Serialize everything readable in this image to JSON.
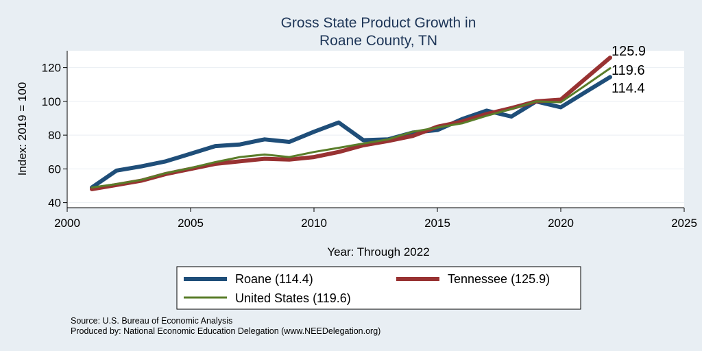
{
  "chart_data": {
    "type": "line",
    "title_line1": "Gross State Product Growth in",
    "title_line2": "Roane County, TN",
    "xlabel": "Year: Through 2022",
    "ylabel": "Index: 2019 = 100",
    "xlim": [
      2000,
      2025
    ],
    "ylim": [
      37,
      130
    ],
    "xticks": [
      "2000",
      "2005",
      "2010",
      "2015",
      "2020",
      "2025"
    ],
    "yticks": [
      "40",
      "60",
      "80",
      "100",
      "120"
    ],
    "x": [
      2001,
      2002,
      2003,
      2004,
      2005,
      2006,
      2007,
      2008,
      2009,
      2010,
      2011,
      2012,
      2013,
      2014,
      2015,
      2016,
      2017,
      2018,
      2019,
      2020,
      2021,
      2022
    ],
    "series": [
      {
        "name": "Roane",
        "legend": "Roane  (114.4)",
        "color": "#1f4e79",
        "values": [
          49,
          59,
          61.5,
          64.5,
          69,
          73.5,
          74.5,
          77.5,
          76,
          82,
          87.5,
          77,
          77.5,
          81.5,
          83,
          89.5,
          94.5,
          91,
          100,
          96.5,
          105.5,
          114.4
        ],
        "end_label": "114.4"
      },
      {
        "name": "Tennessee",
        "legend": "Tennessee (125.9)",
        "color": "#983232",
        "values": [
          48,
          50.5,
          53,
          57,
          60,
          63,
          64.5,
          66,
          65.5,
          67,
          70,
          74,
          76.5,
          79.5,
          85,
          88,
          92.5,
          96,
          100,
          101,
          113.5,
          125.9
        ],
        "end_label": "125.9"
      },
      {
        "name": "United States",
        "legend": "United States (119.6)",
        "color": "#5a7d2a",
        "values": [
          49,
          51,
          53.5,
          57.5,
          60.5,
          64,
          67,
          68.5,
          67,
          70,
          72.5,
          75,
          77.5,
          82,
          84.5,
          87,
          91.5,
          95.5,
          100,
          99.5,
          109.5,
          119.6
        ],
        "end_label": "119.6"
      }
    ],
    "notes": [
      "Source: U.S. Bureau of Economic Analysis",
      "Produced by: National Economic Education Delegation (www.NEEDelegation.org)"
    ]
  }
}
